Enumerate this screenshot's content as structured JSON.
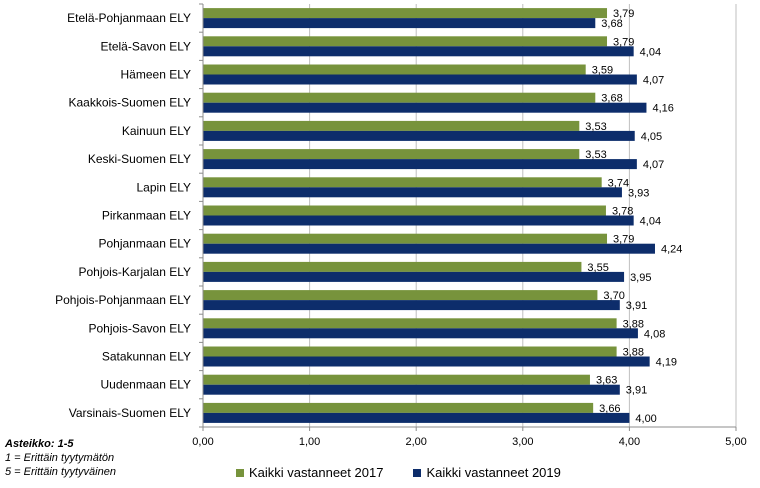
{
  "chart_data": {
    "type": "bar",
    "orientation": "horizontal",
    "categories": [
      "Etelä-Pohjanmaan ELY",
      "Etelä-Savon ELY",
      "Hämeen ELY",
      "Kaakkois-Suomen ELY",
      "Kainuun ELY",
      "Keski-Suomen ELY",
      "Lapin ELY",
      "Pirkanmaan ELY",
      "Pohjanmaan ELY",
      "Pohjois-Karjalan ELY",
      "Pohjois-Pohjanmaan ELY",
      "Pohjois-Savon ELY",
      "Satakunnan ELY",
      "Uudenmaan ELY",
      "Varsinais-Suomen ELY"
    ],
    "series": [
      {
        "name": "Kaikki vastanneet 2017",
        "color": "#77933c",
        "values": [
          3.79,
          3.79,
          3.59,
          3.68,
          3.53,
          3.53,
          3.74,
          3.78,
          3.79,
          3.55,
          3.7,
          3.88,
          3.88,
          3.63,
          3.66
        ],
        "labels": [
          "3,79",
          "3,79",
          "3,59",
          "3,68",
          "3,53",
          "3,53",
          "3,74",
          "3,78",
          "3,79",
          "3,55",
          "3,70",
          "3,88",
          "3,88",
          "3,63",
          "3,66"
        ]
      },
      {
        "name": "Kaikki vastanneet 2019",
        "color": "#0d2d6b",
        "values": [
          3.68,
          4.04,
          4.07,
          4.16,
          4.05,
          4.07,
          3.93,
          4.04,
          4.24,
          3.95,
          3.91,
          4.08,
          4.19,
          3.91,
          4.0
        ],
        "labels": [
          "3,68",
          "4,04",
          "4,07",
          "4,16",
          "4,05",
          "4,07",
          "3,93",
          "4,04",
          "4,24",
          "3,95",
          "3,91",
          "4,08",
          "4,19",
          "3,91",
          "4,00"
        ]
      }
    ],
    "xlim": [
      0,
      5
    ],
    "xticks": [
      0,
      1,
      2,
      3,
      4,
      5
    ],
    "xtick_labels": [
      "0,00",
      "1,00",
      "2,00",
      "3,00",
      "4,00",
      "5,00"
    ],
    "title": "",
    "xlabel": "",
    "ylabel": "",
    "grid": true,
    "legend_position": "bottom"
  },
  "scale_note": {
    "title": "Asteikko: 1-5",
    "lines": [
      "1 = Erittäin tyytymätön",
      "5 = Erittäin tyytyväinen"
    ]
  },
  "colors": {
    "axis": "#8c8c8c",
    "grid": "#bfbfbf",
    "text": "#000000"
  }
}
